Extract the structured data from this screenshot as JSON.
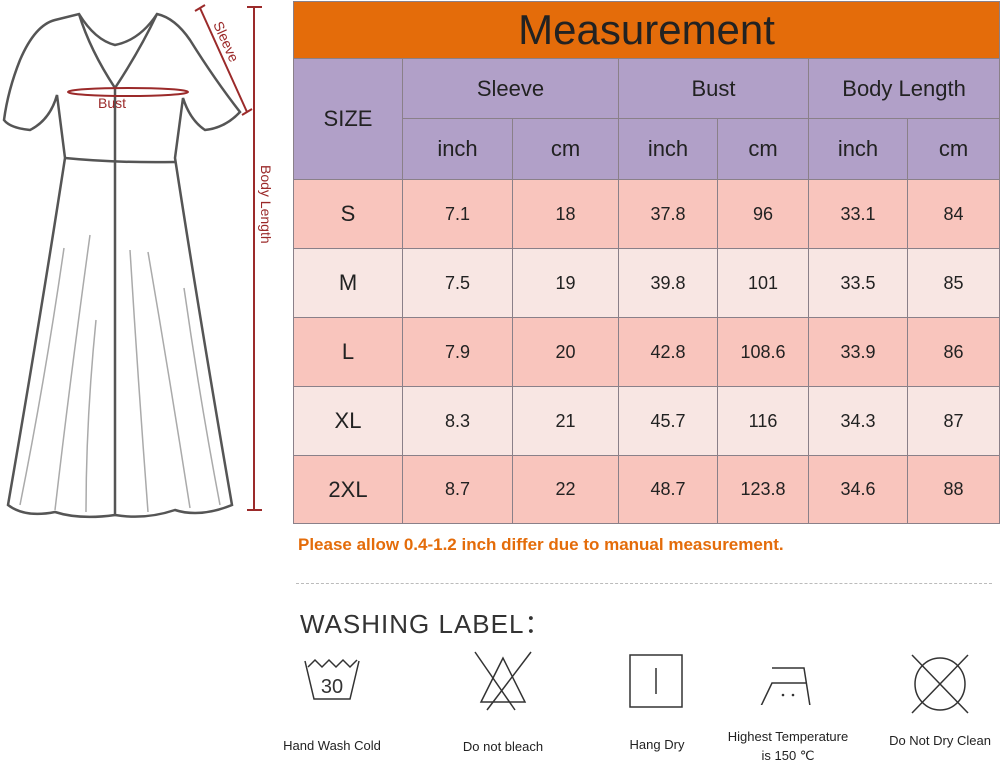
{
  "diagram": {
    "labels": {
      "sleeve": "Sleeve",
      "bust": "Bust",
      "body_length": "Body Length"
    },
    "accent_color": "#9b2a2a"
  },
  "table": {
    "title": "Measurement",
    "size_header": "SIZE",
    "groups": [
      "Sleeve",
      "Bust",
      "Body Length"
    ],
    "units": [
      "inch",
      "cm",
      "inch",
      "cm",
      "inch",
      "cm"
    ],
    "rows": [
      {
        "size": "S",
        "values": [
          "7.1",
          "18",
          "37.8",
          "96",
          "33.1",
          "84"
        ]
      },
      {
        "size": "M",
        "values": [
          "7.5",
          "19",
          "39.8",
          "101",
          "33.5",
          "85"
        ]
      },
      {
        "size": "L",
        "values": [
          "7.9",
          "20",
          "42.8",
          "108.6",
          "33.9",
          "86"
        ]
      },
      {
        "size": "XL",
        "values": [
          "8.3",
          "21",
          "45.7",
          "116",
          "34.3",
          "87"
        ]
      },
      {
        "size": "2XL",
        "values": [
          "8.7",
          "22",
          "48.7",
          "123.8",
          "34.6",
          "88"
        ]
      }
    ],
    "colors": {
      "title": "#e46c0a",
      "header": "#b1a0c8",
      "row_dark": "#f9c5bd",
      "row_light": "#f8e6e3"
    }
  },
  "note": "Please allow 0.4-1.2 inch differ due to manual measurement.",
  "washing": {
    "title": "WASHING LABEL：",
    "items": [
      {
        "icon": "hand-wash-30-icon",
        "label": "Hand Wash Cold",
        "number": "30"
      },
      {
        "icon": "no-bleach-icon",
        "label": "Do not bleach"
      },
      {
        "icon": "hang-dry-icon",
        "label": "Hang Dry"
      },
      {
        "icon": "iron-icon",
        "label": "Highest Temperature",
        "label2": "is 150 ℃"
      },
      {
        "icon": "no-dry-clean-icon",
        "label": "Do Not Dry Clean"
      }
    ]
  }
}
